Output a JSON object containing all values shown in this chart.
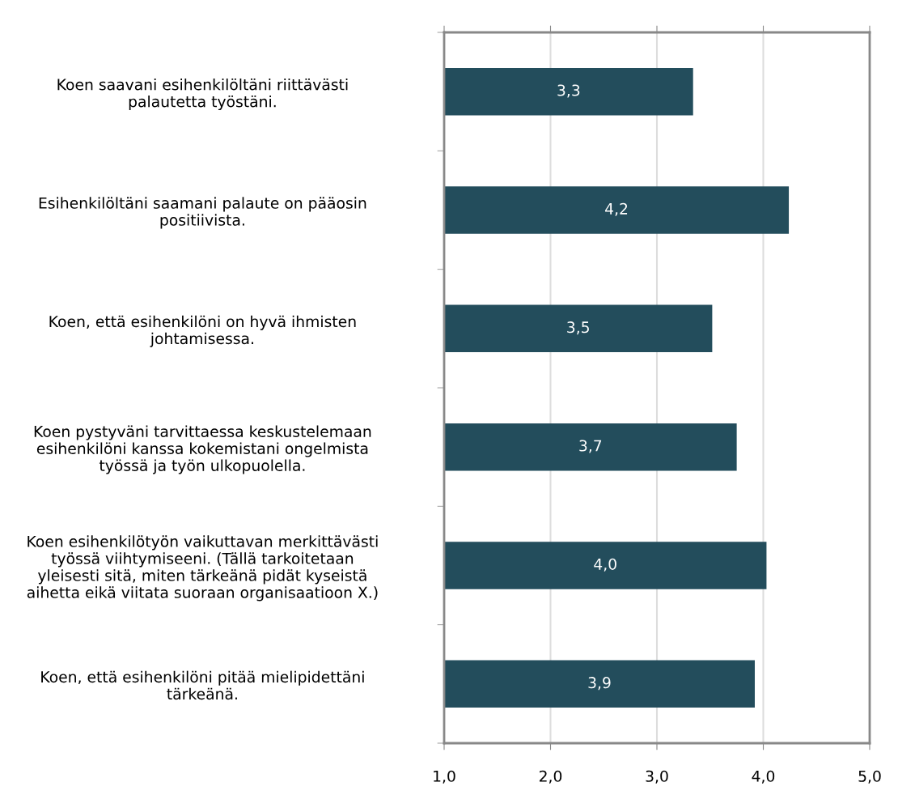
{
  "chart_data": {
    "type": "bar",
    "orientation": "horizontal",
    "categories": [
      "Koen saavani esihenkilöltäni riittävästi\npalautetta työstäni.",
      "Esihenkilöltäni saamani palaute on pääosin\npositiivista.",
      "Koen, että esihenkilöni on hyvä ihmisten\njohtamisessa.",
      "Koen pystyväni tarvittaessa keskustelemaan\nesihenkilöni kanssa kokemistani ongelmista\ntyössä ja työn ulkopuolella.",
      "Koen esihenkilötyön vaikuttavan merkittävästi\ntyössä viihtymiseeni. (Tällä tarkoitetaan\nyleisesti sitä, miten tärkeänä pidät kyseistä\naihetta eikä viitata suoraan organisaatioon X.)",
      "Koen, että esihenkilöni pitää mielipidettäni\ntärkeänä."
    ],
    "values": [
      3.34,
      4.24,
      3.52,
      3.75,
      4.03,
      3.92
    ],
    "value_labels": [
      "3,3",
      "4,2",
      "3,5",
      "3,7",
      "4,0",
      "3,9"
    ],
    "color": "#234d5c",
    "xlim": [
      1,
      5
    ],
    "xticks": [
      {
        "value": 1,
        "label": "1,0"
      },
      {
        "value": 2,
        "label": "2,0"
      },
      {
        "value": 3,
        "label": "3,0"
      },
      {
        "value": 4,
        "label": "4,0"
      },
      {
        "value": 5,
        "label": "5,0"
      }
    ],
    "grid": "x",
    "legend": false
  }
}
